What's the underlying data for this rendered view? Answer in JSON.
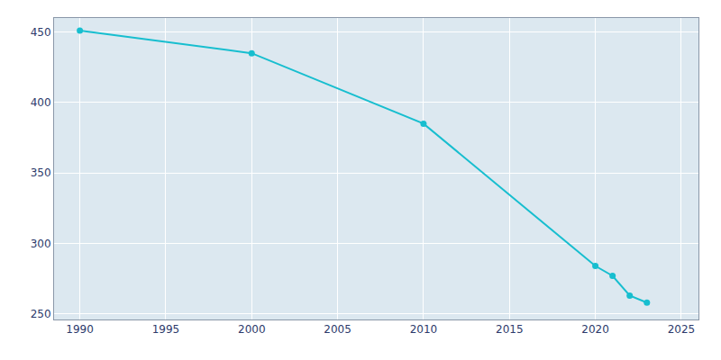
{
  "chart_data": {
    "type": "line",
    "x": [
      1990,
      2000,
      2010,
      2020,
      2021,
      2022,
      2023
    ],
    "values": [
      451,
      435,
      385,
      284,
      277,
      263,
      258
    ],
    "color": "#17becf",
    "marker": "circle",
    "xlim": [
      1988.5,
      2026.0
    ],
    "ylim": [
      246,
      460
    ],
    "xticks": [
      1990,
      1995,
      2000,
      2005,
      2010,
      2015,
      2020,
      2025
    ],
    "yticks": [
      250,
      300,
      350,
      400,
      450
    ],
    "grid": true
  }
}
